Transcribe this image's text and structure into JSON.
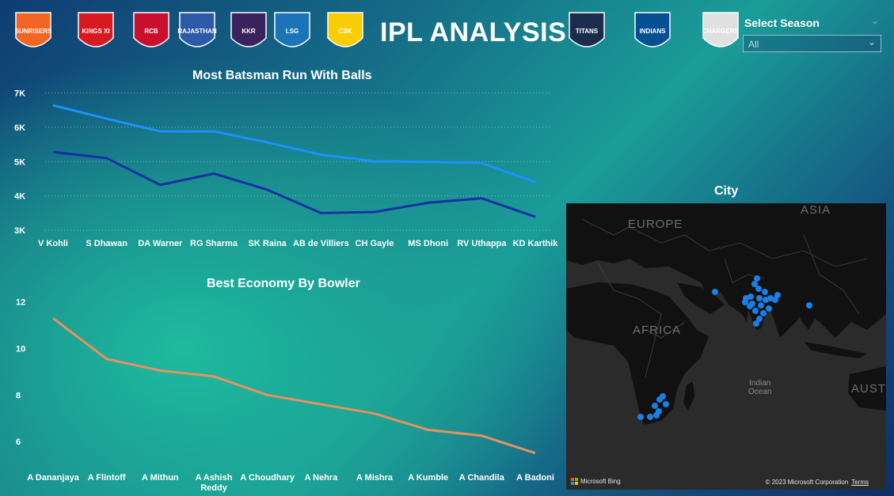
{
  "header": {
    "title": "IPL ANALYSIS",
    "logos": [
      {
        "name": "sunrisers-logo",
        "text": "SUNRISERS",
        "color": "#f26522"
      },
      {
        "name": "kings-xi-punjab-logo",
        "text": "KINGS XI PUNJAB",
        "color": "#d71920"
      },
      {
        "name": "royal-challengers-logo",
        "text": "RCB",
        "color": "#c8102e"
      },
      {
        "name": "rajasthan-royals-logo",
        "text": "RAJASTHAN ROYALS",
        "color": "#2d5aa7"
      },
      {
        "name": "kolkata-knight-riders-logo",
        "text": "KKR",
        "color": "#3a225d"
      },
      {
        "name": "lucknow-super-giants-logo",
        "text": "LSG",
        "color": "#1b73b8"
      },
      {
        "name": "chennai-super-kings-logo",
        "text": "CSK",
        "color": "#f9cd05"
      },
      {
        "name": "gujarat-titans-logo",
        "text": "TITANS",
        "color": "#1c2c4c"
      },
      {
        "name": "mumbai-indians-logo",
        "text": "INDIANS",
        "color": "#045093"
      },
      {
        "name": "deccan-chargers-logo",
        "text": "CHARGERS",
        "color": "#e0e0e0"
      }
    ]
  },
  "filter": {
    "label": "Select Season",
    "selected": "All"
  },
  "chart_data": [
    {
      "type": "line",
      "title": "Most Batsman Run With Balls",
      "categories": [
        "V Kohli",
        "S Dhawan",
        "DA Warner",
        "RG Sharma",
        "SK Raina",
        "AB de Villiers",
        "CH Gayle",
        "MS Dhoni",
        "RV Uthappa",
        "KD Karthik"
      ],
      "series": [
        {
          "values": [
            6640,
            6250,
            5880,
            5880,
            5560,
            5200,
            5010,
            4990,
            4960,
            4400
          ],
          "color": "#1e90ff"
        },
        {
          "values": [
            5280,
            5100,
            4320,
            4650,
            4180,
            3500,
            3530,
            3800,
            3930,
            3390
          ],
          "color": "#1431a6"
        }
      ],
      "yticks": [
        "7K",
        "6K",
        "5K",
        "4K",
        "3K"
      ],
      "ylim": [
        3000,
        7000
      ],
      "grid": true
    },
    {
      "type": "line",
      "title": "Best Economy By Bowler",
      "categories": [
        "A Dananjaya",
        "A Flintoff",
        "A Mithun",
        "A Ashish Reddy",
        "A Choudhary",
        "A Nehra",
        "A Mishra",
        "A Kumble",
        "A Chandila",
        "A Badoni"
      ],
      "series": [
        {
          "values": [
            11.3,
            9.55,
            9.05,
            8.8,
            8.0,
            7.6,
            7.2,
            6.5,
            6.25,
            5.5
          ],
          "color": "#e8915e"
        }
      ],
      "yticks": [
        "12",
        "10",
        "8",
        "6"
      ],
      "ylim": [
        5,
        12.5
      ],
      "grid": false
    }
  ],
  "map": {
    "title": "City",
    "labels": {
      "europe": "EUROPE",
      "asia": "ASIA",
      "africa": "AFRICA",
      "australia": "AUSTR",
      "ocean": "Indian\nOcean"
    },
    "point_color": "#1a7fe8",
    "attribution": "Microsoft Bing",
    "copyright": "© 2023 Microsoft Corporation",
    "terms": "Terms"
  }
}
